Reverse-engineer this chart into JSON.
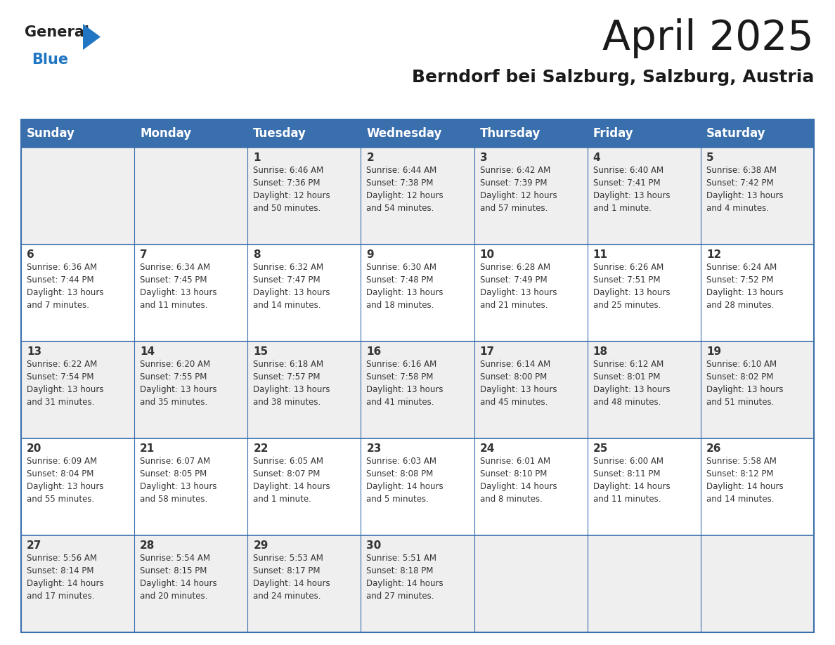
{
  "title": "April 2025",
  "subtitle": "Berndorf bei Salzburg, Salzburg, Austria",
  "header_color": "#3a6fad",
  "header_text_color": "#ffffff",
  "cell_bg_even": "#efefef",
  "cell_bg_odd": "#ffffff",
  "border_color": "#3a6fad",
  "text_color": "#333333",
  "day_names": [
    "Sunday",
    "Monday",
    "Tuesday",
    "Wednesday",
    "Thursday",
    "Friday",
    "Saturday"
  ],
  "weeks": [
    [
      {
        "day": "",
        "info": ""
      },
      {
        "day": "",
        "info": ""
      },
      {
        "day": "1",
        "info": "Sunrise: 6:46 AM\nSunset: 7:36 PM\nDaylight: 12 hours\nand 50 minutes."
      },
      {
        "day": "2",
        "info": "Sunrise: 6:44 AM\nSunset: 7:38 PM\nDaylight: 12 hours\nand 54 minutes."
      },
      {
        "day": "3",
        "info": "Sunrise: 6:42 AM\nSunset: 7:39 PM\nDaylight: 12 hours\nand 57 minutes."
      },
      {
        "day": "4",
        "info": "Sunrise: 6:40 AM\nSunset: 7:41 PM\nDaylight: 13 hours\nand 1 minute."
      },
      {
        "day": "5",
        "info": "Sunrise: 6:38 AM\nSunset: 7:42 PM\nDaylight: 13 hours\nand 4 minutes."
      }
    ],
    [
      {
        "day": "6",
        "info": "Sunrise: 6:36 AM\nSunset: 7:44 PM\nDaylight: 13 hours\nand 7 minutes."
      },
      {
        "day": "7",
        "info": "Sunrise: 6:34 AM\nSunset: 7:45 PM\nDaylight: 13 hours\nand 11 minutes."
      },
      {
        "day": "8",
        "info": "Sunrise: 6:32 AM\nSunset: 7:47 PM\nDaylight: 13 hours\nand 14 minutes."
      },
      {
        "day": "9",
        "info": "Sunrise: 6:30 AM\nSunset: 7:48 PM\nDaylight: 13 hours\nand 18 minutes."
      },
      {
        "day": "10",
        "info": "Sunrise: 6:28 AM\nSunset: 7:49 PM\nDaylight: 13 hours\nand 21 minutes."
      },
      {
        "day": "11",
        "info": "Sunrise: 6:26 AM\nSunset: 7:51 PM\nDaylight: 13 hours\nand 25 minutes."
      },
      {
        "day": "12",
        "info": "Sunrise: 6:24 AM\nSunset: 7:52 PM\nDaylight: 13 hours\nand 28 minutes."
      }
    ],
    [
      {
        "day": "13",
        "info": "Sunrise: 6:22 AM\nSunset: 7:54 PM\nDaylight: 13 hours\nand 31 minutes."
      },
      {
        "day": "14",
        "info": "Sunrise: 6:20 AM\nSunset: 7:55 PM\nDaylight: 13 hours\nand 35 minutes."
      },
      {
        "day": "15",
        "info": "Sunrise: 6:18 AM\nSunset: 7:57 PM\nDaylight: 13 hours\nand 38 minutes."
      },
      {
        "day": "16",
        "info": "Sunrise: 6:16 AM\nSunset: 7:58 PM\nDaylight: 13 hours\nand 41 minutes."
      },
      {
        "day": "17",
        "info": "Sunrise: 6:14 AM\nSunset: 8:00 PM\nDaylight: 13 hours\nand 45 minutes."
      },
      {
        "day": "18",
        "info": "Sunrise: 6:12 AM\nSunset: 8:01 PM\nDaylight: 13 hours\nand 48 minutes."
      },
      {
        "day": "19",
        "info": "Sunrise: 6:10 AM\nSunset: 8:02 PM\nDaylight: 13 hours\nand 51 minutes."
      }
    ],
    [
      {
        "day": "20",
        "info": "Sunrise: 6:09 AM\nSunset: 8:04 PM\nDaylight: 13 hours\nand 55 minutes."
      },
      {
        "day": "21",
        "info": "Sunrise: 6:07 AM\nSunset: 8:05 PM\nDaylight: 13 hours\nand 58 minutes."
      },
      {
        "day": "22",
        "info": "Sunrise: 6:05 AM\nSunset: 8:07 PM\nDaylight: 14 hours\nand 1 minute."
      },
      {
        "day": "23",
        "info": "Sunrise: 6:03 AM\nSunset: 8:08 PM\nDaylight: 14 hours\nand 5 minutes."
      },
      {
        "day": "24",
        "info": "Sunrise: 6:01 AM\nSunset: 8:10 PM\nDaylight: 14 hours\nand 8 minutes."
      },
      {
        "day": "25",
        "info": "Sunrise: 6:00 AM\nSunset: 8:11 PM\nDaylight: 14 hours\nand 11 minutes."
      },
      {
        "day": "26",
        "info": "Sunrise: 5:58 AM\nSunset: 8:12 PM\nDaylight: 14 hours\nand 14 minutes."
      }
    ],
    [
      {
        "day": "27",
        "info": "Sunrise: 5:56 AM\nSunset: 8:14 PM\nDaylight: 14 hours\nand 17 minutes."
      },
      {
        "day": "28",
        "info": "Sunrise: 5:54 AM\nSunset: 8:15 PM\nDaylight: 14 hours\nand 20 minutes."
      },
      {
        "day": "29",
        "info": "Sunrise: 5:53 AM\nSunset: 8:17 PM\nDaylight: 14 hours\nand 24 minutes."
      },
      {
        "day": "30",
        "info": "Sunrise: 5:51 AM\nSunset: 8:18 PM\nDaylight: 14 hours\nand 27 minutes."
      },
      {
        "day": "",
        "info": ""
      },
      {
        "day": "",
        "info": ""
      },
      {
        "day": "",
        "info": ""
      }
    ]
  ],
  "logo_general_color": "#222222",
  "logo_blue_color": "#2176c4",
  "logo_triangle_color": "#2176c4",
  "title_fontsize": 42,
  "subtitle_fontsize": 18,
  "header_fontsize": 12,
  "day_num_fontsize": 11,
  "info_fontsize": 8.5
}
